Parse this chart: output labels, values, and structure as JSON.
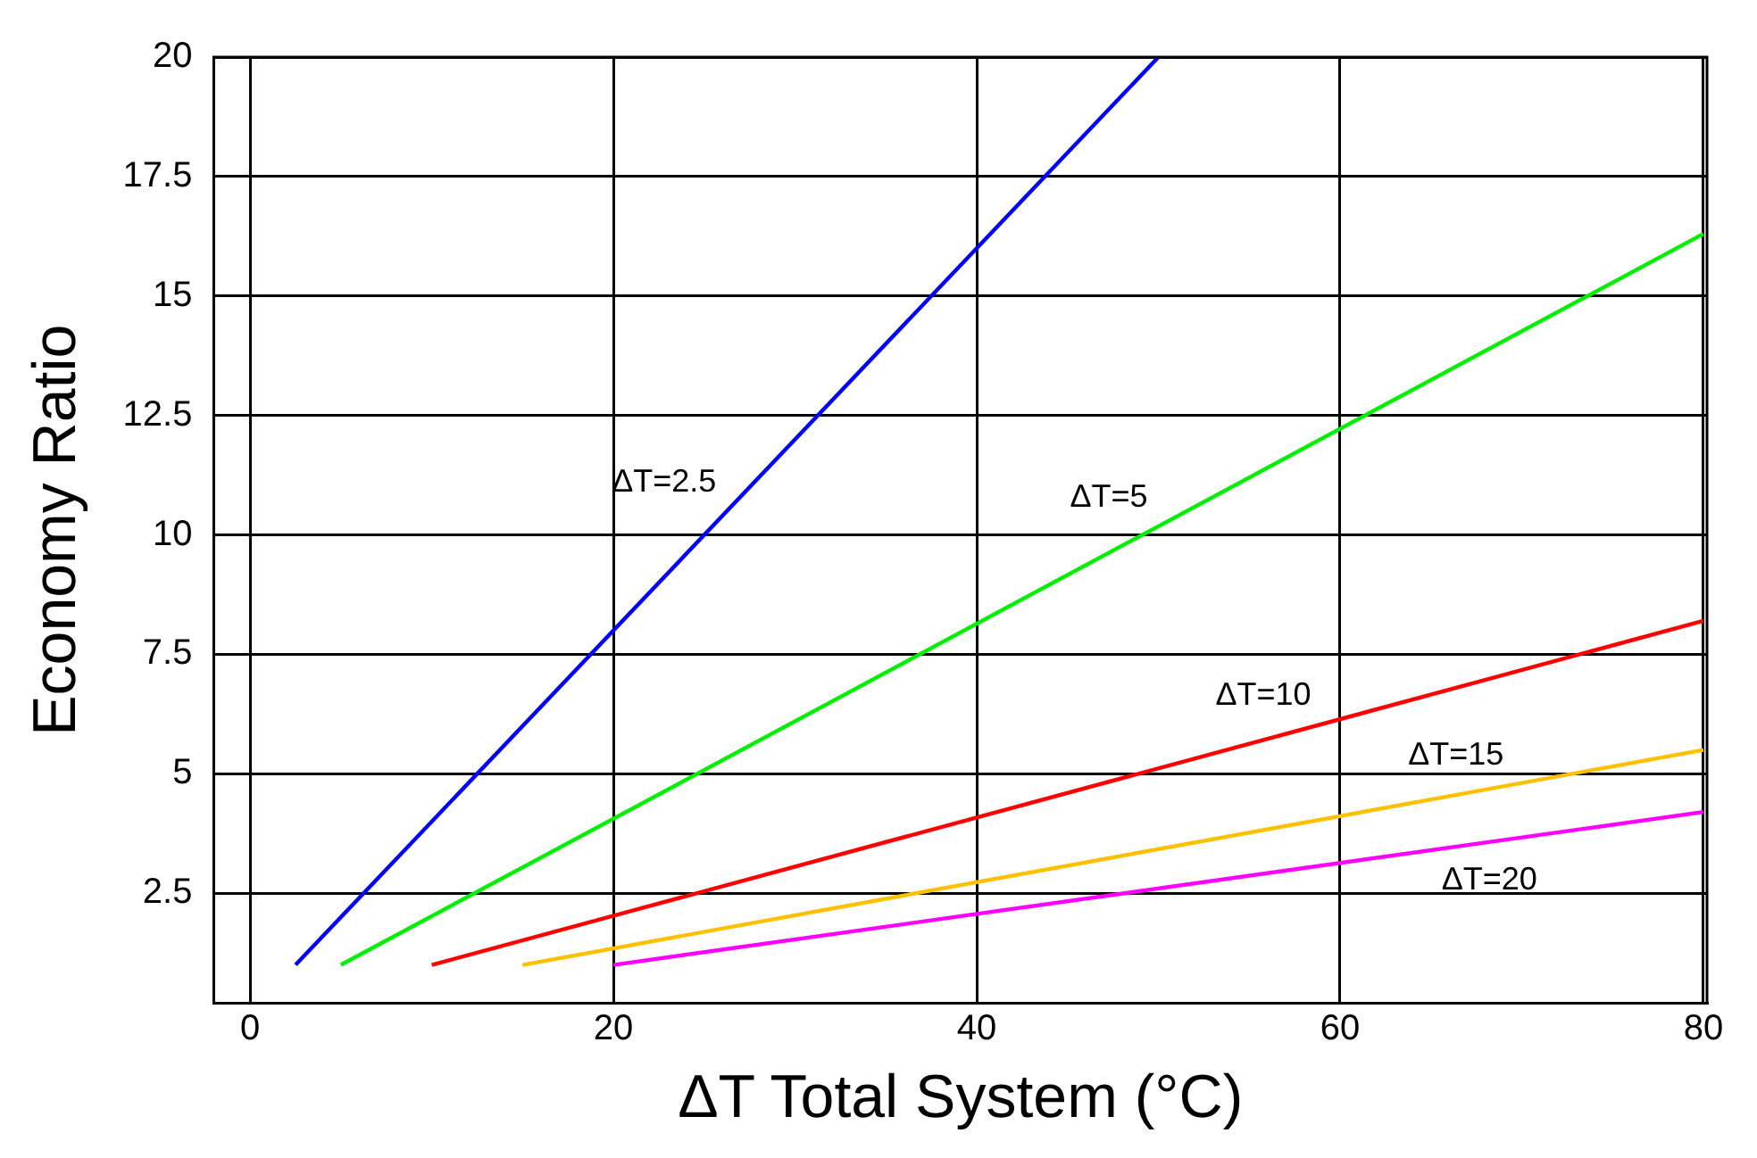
{
  "chart_data": {
    "type": "line",
    "xlabel": "ΔT Total System (°C)",
    "ylabel": "Economy Ratio",
    "xlim": [
      -2,
      80.2
    ],
    "xticks": [
      0,
      20,
      40,
      60,
      80
    ],
    "ylim": [
      0.2,
      20
    ],
    "yticks": [
      2.5,
      5,
      7.5,
      10,
      12.5,
      15,
      17.5,
      20
    ],
    "grid": true,
    "legend": false,
    "marker": "none",
    "line_style": "solid",
    "series": [
      {
        "name": "ΔT=2.5",
        "color": "#0000ff",
        "x": [
          2.5,
          50
        ],
        "values": [
          1,
          20
        ]
      },
      {
        "name": "ΔT=5",
        "color": "#00ee00",
        "x": [
          5,
          80
        ],
        "values": [
          1,
          16.3
        ]
      },
      {
        "name": "ΔT=10",
        "color": "#ff0000",
        "x": [
          10,
          80
        ],
        "values": [
          1,
          8.2
        ]
      },
      {
        "name": "ΔT=15",
        "color": "#ffc000",
        "x": [
          15,
          80
        ],
        "values": [
          1,
          5.5
        ]
      },
      {
        "name": "ΔT=20",
        "color": "#ff00ff",
        "x": [
          20,
          80
        ],
        "values": [
          1,
          4.2
        ]
      }
    ]
  }
}
